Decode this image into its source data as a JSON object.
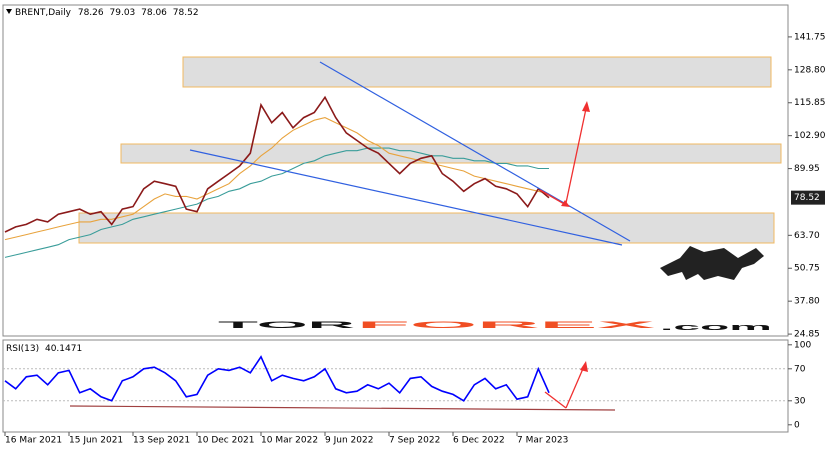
{
  "chart_data": [
    {
      "type": "line",
      "title": "BRENT,Daily",
      "ohlc": [
        78.26,
        79.03,
        78.06,
        78.52
      ],
      "categories": [
        "16 Mar 2021",
        null,
        null,
        null,
        null,
        null,
        "15 Jun 2021",
        null,
        null,
        null,
        null,
        null,
        "13 Sep 2021",
        null,
        null,
        null,
        null,
        null,
        "10 Dec 2021",
        null,
        null,
        null,
        null,
        null,
        "10 Mar 2022",
        null,
        null,
        null,
        null,
        null,
        "9 Jun 2022",
        null,
        null,
        null,
        null,
        null,
        "7 Sep 2022",
        null,
        null,
        null,
        null,
        null,
        "6 Dec 2022",
        null,
        null,
        null,
        null,
        null,
        "7 Mar 2023",
        null,
        null,
        null
      ],
      "series": [
        {
          "color": "#8b1a1a",
          "values": [
            65,
            67,
            68,
            70,
            69,
            72,
            73,
            74,
            72,
            73,
            68,
            74,
            75,
            82,
            85,
            84,
            83,
            74,
            73,
            82,
            85,
            88,
            91,
            96,
            115,
            108,
            112,
            106,
            110,
            112,
            118,
            110,
            104,
            101,
            98,
            96,
            92,
            88,
            92,
            94,
            95,
            88,
            85,
            81,
            84,
            86,
            83,
            82,
            80,
            75,
            82,
            78.52
          ]
        },
        {
          "color": "#e8a33d",
          "values": [
            62,
            63,
            64,
            65,
            66,
            67,
            68,
            69,
            69,
            70,
            70,
            71,
            72,
            75,
            78,
            80,
            79,
            79,
            78,
            80,
            82,
            84,
            88,
            91,
            95,
            98,
            102,
            105,
            107,
            109,
            110,
            108,
            106,
            104,
            101,
            99,
            96,
            95,
            94,
            93,
            92,
            91,
            90,
            89,
            87,
            86,
            85,
            84,
            83,
            82,
            81,
            80
          ]
        },
        {
          "color": "#3a9d9a",
          "values": [
            55,
            56,
            57,
            58,
            59,
            60,
            62,
            63,
            64,
            66,
            67,
            68,
            70,
            71,
            72,
            73,
            74,
            75,
            76,
            78,
            79,
            81,
            82,
            84,
            85,
            87,
            88,
            90,
            92,
            93,
            95,
            96,
            97,
            97,
            98,
            98,
            98,
            97,
            97,
            96,
            95,
            95,
            94,
            94,
            93,
            93,
            92,
            92,
            91,
            91,
            90,
            90
          ]
        }
      ],
      "ylim": [
        24.1,
        154.3
      ],
      "yticks": [
        141.75,
        {
          "value": 128.8,
          "label": "128.80"
        },
        115.85,
        {
          "value": 102.9,
          "label": "102.90"
        },
        89.95,
        {
          "value": 63.7,
          "label": "63.70"
        },
        50.75,
        {
          "value": 37.8,
          "label": "37.80"
        },
        24.85
      ],
      "watermark": [
        "TOR",
        "FOREX",
        ".com"
      ]
    },
    {
      "type": "line",
      "title": "RSI(13)",
      "last_value": 40.1471,
      "series": [
        {
          "color": "#0000ff",
          "values": [
            55,
            45,
            60,
            62,
            50,
            65,
            68,
            40,
            45,
            35,
            30,
            55,
            60,
            70,
            72,
            65,
            55,
            35,
            38,
            62,
            70,
            68,
            72,
            65,
            85,
            55,
            62,
            58,
            55,
            60,
            70,
            45,
            40,
            42,
            50,
            45,
            52,
            40,
            58,
            60,
            48,
            42,
            38,
            30,
            50,
            58,
            45,
            50,
            32,
            35,
            70,
            40
          ]
        }
      ],
      "ylim": [
        -9,
        106
      ],
      "yticks": [
        100,
        70,
        30,
        0
      ]
    }
  ]
}
